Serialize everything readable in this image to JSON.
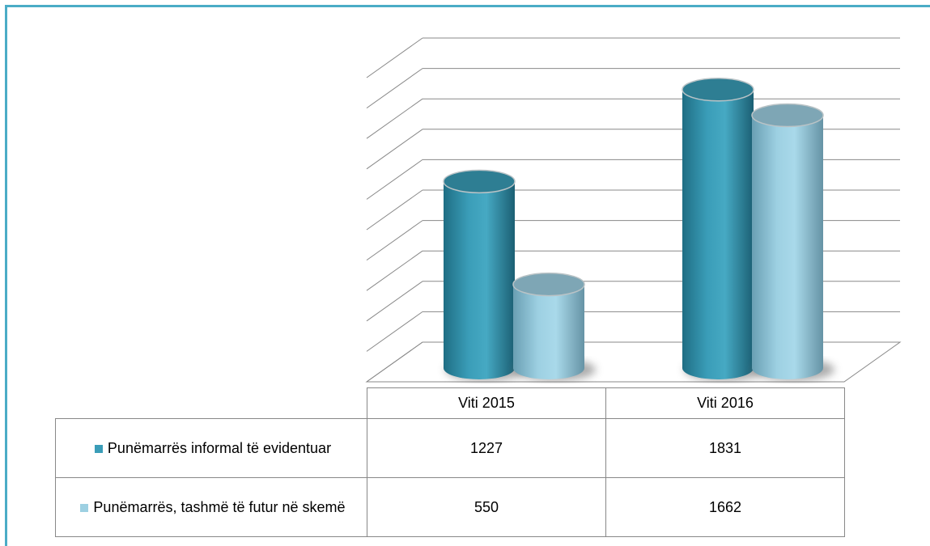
{
  "chart_data": {
    "type": "bar3d",
    "categories": [
      "Viti 2015",
      "Viti 2016"
    ],
    "series": [
      {
        "name": "Punëmarrës informal të evidentuar",
        "color": "#3a9db8",
        "values": [
          1227,
          1831
        ]
      },
      {
        "name": "Punëmarrës, tashmë të futur në skemë",
        "color": "#9dd0e2",
        "values": [
          550,
          1662
        ]
      }
    ],
    "ylim": [
      0,
      2000
    ],
    "yticks": [
      0,
      200,
      400,
      600,
      800,
      1000,
      1200,
      1400,
      1600,
      1800,
      2000
    ],
    "grid": true
  }
}
